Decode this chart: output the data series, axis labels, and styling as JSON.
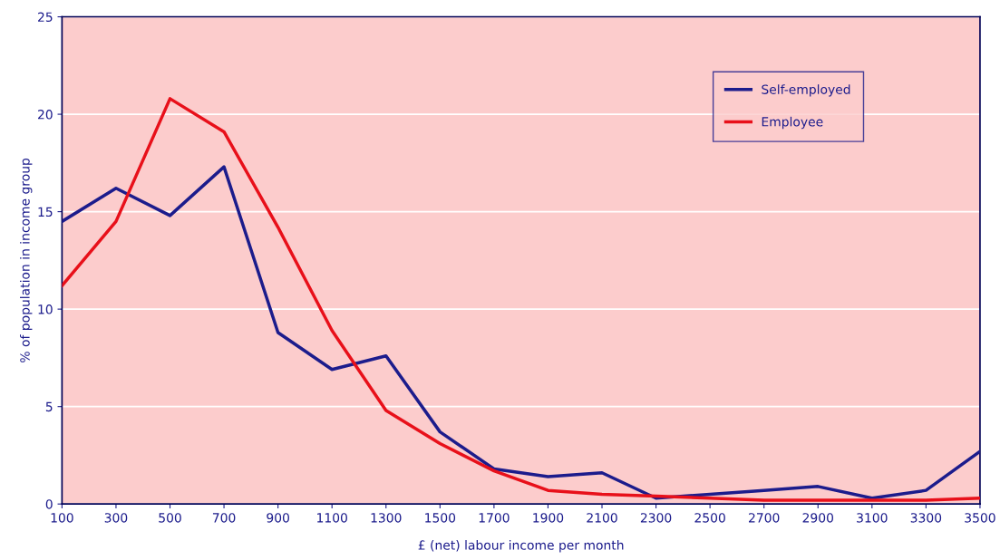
{
  "chart_data": {
    "type": "line",
    "xlabel": "£ (net) labour income per month",
    "ylabel": "% of population in income group",
    "x": [
      100,
      300,
      500,
      700,
      900,
      1100,
      1300,
      1500,
      1700,
      1900,
      2100,
      2300,
      2500,
      2700,
      2900,
      3100,
      3300,
      3500
    ],
    "series": [
      {
        "name": "Self-employed",
        "color": "#1c1c8c",
        "values": [
          14.5,
          16.2,
          14.8,
          17.3,
          8.8,
          6.9,
          7.6,
          3.7,
          1.8,
          1.4,
          1.6,
          0.3,
          0.5,
          0.7,
          0.9,
          0.3,
          0.7,
          2.7
        ]
      },
      {
        "name": "Employee",
        "color": "#e8101a",
        "values": [
          11.2,
          14.5,
          20.8,
          19.1,
          14.2,
          8.9,
          4.8,
          3.1,
          1.7,
          0.7,
          0.5,
          0.4,
          0.3,
          0.2,
          0.2,
          0.2,
          0.2,
          0.3
        ]
      }
    ],
    "xlim": [
      100,
      3500
    ],
    "xticks": [
      100,
      300,
      500,
      700,
      900,
      1100,
      1300,
      1500,
      1700,
      1900,
      2100,
      2300,
      2500,
      2700,
      2900,
      3100,
      3300,
      3500
    ],
    "ylim": [
      0,
      25
    ],
    "yticks": [
      0,
      5,
      10,
      15,
      20,
      25
    ],
    "grid": "y",
    "legend": "top right",
    "marker": "none",
    "line_style": "solid"
  }
}
